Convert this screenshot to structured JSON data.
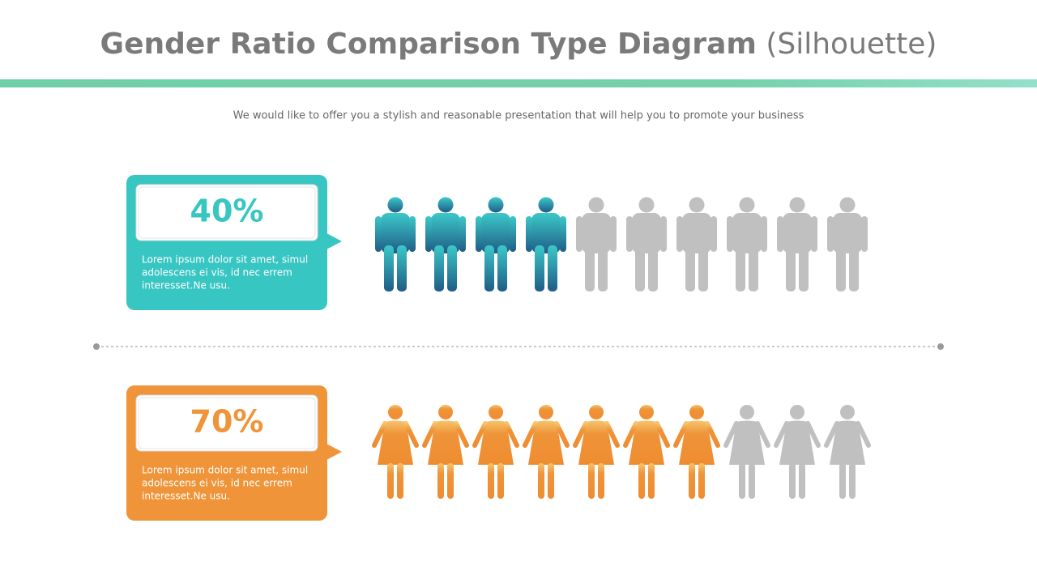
{
  "header": {
    "title": "Gender Ratio Comparison Type Diagram",
    "title_suffix": "(Silhouette)",
    "subtitle": "We would like to offer you a stylish and reasonable presentation that will help you to promote your business"
  },
  "rows": [
    {
      "kind": "male",
      "value": 40,
      "value_label": "40%",
      "color": "#38c6c3",
      "description": [
        "Lorem ipsum dolor sit amet, simul",
        "adolescens ei vis, id nec errem",
        "interesset.Ne usu."
      ]
    },
    {
      "kind": "female",
      "value": 70,
      "value_label": "70%",
      "color": "#ef9439",
      "description": [
        "Lorem ipsum dolor sit amet, simul",
        "adolescens ei vis, id nec errem",
        "interesset.Ne usu."
      ]
    }
  ]
}
